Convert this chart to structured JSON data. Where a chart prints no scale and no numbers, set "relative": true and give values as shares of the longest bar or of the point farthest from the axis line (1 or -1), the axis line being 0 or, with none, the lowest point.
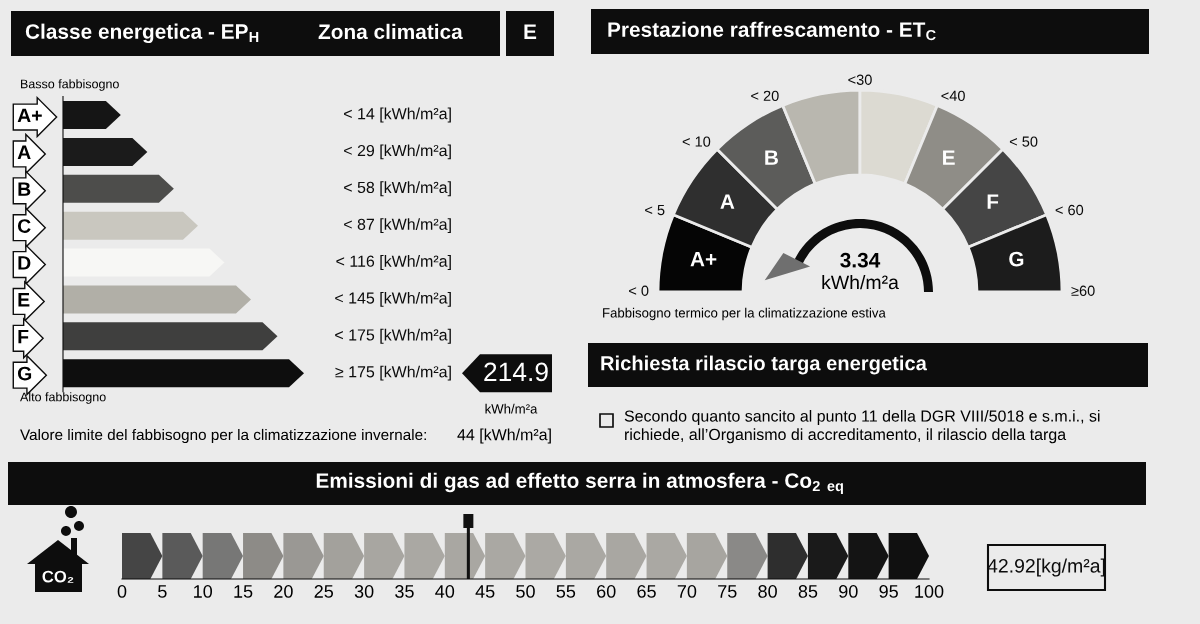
{
  "chart_data": [
    {
      "type": "bar",
      "orientation": "horizontal",
      "relative": true,
      "title": "Classe energetica - EP$_{H}$",
      "categories": [
        "A+",
        "A",
        "B",
        "C",
        "D",
        "E",
        "F",
        "G"
      ],
      "values": [
        0.24,
        0.35,
        0.46,
        0.56,
        0.67,
        0.78,
        0.89,
        1
      ],
      "colors": [
        "#151515",
        "#1b1b1b",
        "#4d4d4b",
        "#c9c7bf",
        "#f7f7f5",
        "#b1afa7",
        "#3f3f3e",
        "#0e0e0e"
      ],
      "annotations": [
        "Zona climatica",
        "E",
        "Basso fabbisogno",
        "< 14 [kWh/m²a]",
        "< 29 [kWh/m²a]",
        "< 58 [kWh/m²a]",
        "< 87 [kWh/m²a]",
        "< 116 [kWh/m²a]",
        "< 145 [kWh/m²a]",
        "< 175 [kWh/m²a]",
        "≥ 175 [kWh/m²a]",
        "Alto fabbisogno",
        "214.9",
        "kWh/m²a",
        "Valore limite del fabbisogno per la climatizzazione invernale:",
        "44 [kWh/m²a]"
      ]
    },
    {
      "type": "donut",
      "title": "Prestazione raffrescamento - ET$_{C}$",
      "categories": [
        "A+",
        "A",
        "B",
        null,
        null,
        "E",
        "F",
        "G"
      ],
      "values": [
        12.5,
        12.5,
        12.5,
        12.5,
        12.5,
        12.5,
        12.5,
        12.5
      ],
      "colors": [
        "#050505",
        "#2f2f2f",
        "#5c5c5a",
        "#b9b7af",
        "#dcdad2",
        "#8f8d87",
        "#454545",
        "#1c1c1c"
      ],
      "annotations": [
        "< 0",
        "< 5",
        "< 10",
        "< 20",
        "<30",
        "<40",
        "< 50",
        "< 60",
        "≥60",
        "3.34",
        "kWh/m²a",
        "Fabbisogno termico per la climatizzazione estiva",
        "Richiesta rilascio targa energetica",
        "Secondo quanto sancito al punto 11 della DGR VIII/5018 e s.m.i., si\nrichiede, all’Organismo di accreditamento, il rilascio della targa"
      ]
    },
    {
      "type": "bar",
      "orientation": "horizontal",
      "stacked": true,
      "title": "Emissioni di gas ad effetto serra in atmosfera - Co$_{2}$ $_{eq}$",
      "categories": [
        null
      ],
      "series": [
        {
          "color": "#454545",
          "values": [
            5
          ]
        },
        {
          "color": "#5a5a5a",
          "values": [
            5
          ]
        },
        {
          "color": "#777776",
          "values": [
            5
          ]
        },
        {
          "color": "#8d8b87",
          "values": [
            5
          ]
        },
        {
          "color": "#9a9894",
          "values": [
            5
          ]
        },
        {
          "color": "#a3a19c",
          "values": [
            5
          ]
        },
        {
          "color": "#a8a6a1",
          "values": [
            5
          ]
        },
        {
          "color": "#aaa8a3",
          "values": [
            5
          ]
        },
        {
          "color": "#a9a7a2",
          "values": [
            5
          ]
        },
        {
          "color": "#aaa8a3",
          "values": [
            5
          ]
        },
        {
          "color": "#aba9a4",
          "values": [
            5
          ]
        },
        {
          "color": "#aaa8a3",
          "values": [
            5
          ]
        },
        {
          "color": "#a9a7a2",
          "values": [
            5
          ]
        },
        {
          "color": "#aaa8a3",
          "values": [
            5
          ]
        },
        {
          "color": "#a7a5a0",
          "values": [
            5
          ]
        },
        {
          "color": "#8a8987",
          "values": [
            5
          ]
        },
        {
          "color": "#2e2e2e",
          "values": [
            5
          ]
        },
        {
          "color": "#1a1a1a",
          "values": [
            5
          ]
        },
        {
          "color": "#141414",
          "values": [
            5
          ]
        },
        {
          "color": "#101010",
          "values": [
            5
          ]
        }
      ],
      "xlim": [
        0,
        100
      ],
      "xticks": [
        0,
        5,
        10,
        15,
        20,
        25,
        30,
        35,
        40,
        45,
        50,
        55,
        60,
        65,
        70,
        75,
        80,
        85,
        90,
        95,
        100
      ],
      "tick_labels": "x",
      "ref_lines": [
        {
          "axis": "x",
          "value": 42.92,
          "label": "42.92[kg/m²a]",
          "color": "#111111"
        }
      ],
      "annotations": [
        "CO₂"
      ]
    }
  ]
}
